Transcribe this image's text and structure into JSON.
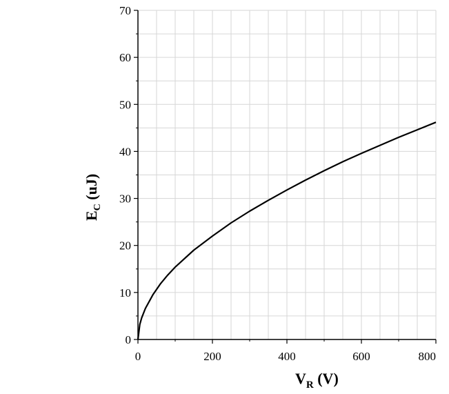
{
  "chart_data": {
    "type": "line",
    "title": "",
    "xlabel": "V",
    "xlabel_sub": "R",
    "xlabel_unit": " (V)",
    "ylabel": "E",
    "ylabel_sub": "C",
    "ylabel_unit": " (uJ)",
    "xlim": [
      0,
      800
    ],
    "ylim": [
      0,
      70
    ],
    "x_ticks": [
      0,
      200,
      400,
      600,
      800
    ],
    "x_tick_labels": [
      "0",
      "200",
      "400",
      "600",
      "800"
    ],
    "y_ticks": [
      0,
      10,
      20,
      30,
      40,
      50,
      60,
      70
    ],
    "y_tick_labels": [
      "0",
      "10",
      "20",
      "30",
      "40",
      "50",
      "60",
      "70"
    ],
    "grid": true,
    "series": [
      {
        "color": "#000000",
        "x": [
          0,
          5,
          10,
          20,
          40,
          60,
          80,
          100,
          150,
          200,
          250,
          300,
          350,
          400,
          450,
          500,
          550,
          600,
          650,
          700,
          750,
          800
        ],
        "y": [
          0,
          3.2,
          4.6,
          6.6,
          9.5,
          11.8,
          13.7,
          15.4,
          19.0,
          22.0,
          24.8,
          27.3,
          29.6,
          31.8,
          33.9,
          35.9,
          37.8,
          39.6,
          41.3,
          43.0,
          44.6,
          46.2
        ]
      }
    ]
  }
}
